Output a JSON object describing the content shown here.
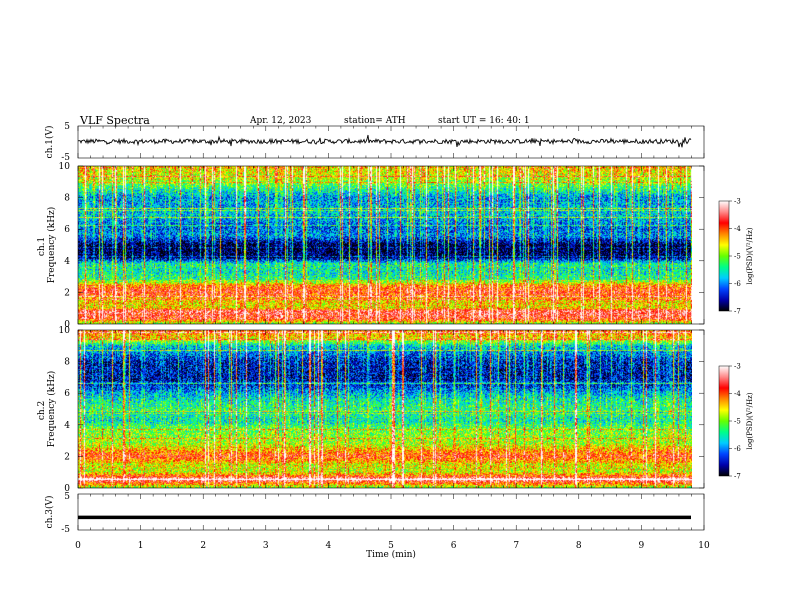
{
  "header": {
    "title": "VLF  Spectra",
    "date": "Apr. 12, 2023",
    "station": "station= ATH",
    "start": "start  UT  =   16: 40: 1"
  },
  "chart_data": [
    {
      "type": "line",
      "name": "ch1-voltage",
      "ylabel": "ch.1(V)",
      "ylim": [
        -5,
        5
      ],
      "ytick_labels": [
        "5",
        "-5"
      ],
      "xlim": [
        0,
        10
      ],
      "baseline": 0.2,
      "amplitude": 1.0,
      "series": []
    },
    {
      "type": "heatmap",
      "name": "ch1-spectrogram",
      "ylabel": "ch.1\nFrequency (kHz)",
      "ylabel_lines": [
        "ch.1",
        "Frequency (kHz)"
      ],
      "ylim": [
        0,
        10
      ],
      "ytick_labels": [
        "0",
        "2",
        "4",
        "6",
        "8",
        "10"
      ],
      "xlim": [
        0,
        9.8
      ],
      "level_profile": [
        [
          0.0,
          -5.0
        ],
        [
          0.3,
          -3.8
        ],
        [
          0.8,
          -3.6
        ],
        [
          1.0,
          -4.6
        ],
        [
          1.5,
          -4.5
        ],
        [
          2.0,
          -3.8
        ],
        [
          2.4,
          -4.2
        ],
        [
          2.8,
          -5.4
        ],
        [
          3.3,
          -5.6
        ],
        [
          3.8,
          -5.5
        ],
        [
          4.2,
          -6.8
        ],
        [
          5.0,
          -6.9
        ],
        [
          5.6,
          -6.0
        ],
        [
          6.0,
          -6.2
        ],
        [
          7.0,
          -5.8
        ],
        [
          8.0,
          -6.0
        ],
        [
          8.8,
          -5.2
        ],
        [
          9.3,
          -4.8
        ],
        [
          9.7,
          -4.6
        ],
        [
          10.0,
          -4.6
        ]
      ]
    },
    {
      "type": "heatmap",
      "name": "ch2-spectrogram",
      "ylabel": "ch.2\nFrequency (kHz)",
      "ylabel_lines": [
        "ch.2",
        "Frequency (kHz)"
      ],
      "ylim": [
        0,
        10
      ],
      "ytick_labels": [
        "0",
        "2",
        "4",
        "6",
        "8",
        "10"
      ],
      "xlim": [
        0,
        9.8
      ],
      "level_profile": [
        [
          0.0,
          -5.0
        ],
        [
          0.5,
          -3.4
        ],
        [
          0.8,
          -4.2
        ],
        [
          1.0,
          -4.8
        ],
        [
          1.5,
          -4.6
        ],
        [
          2.0,
          -3.9
        ],
        [
          2.4,
          -4.4
        ],
        [
          2.8,
          -4.9
        ],
        [
          3.3,
          -5.0
        ],
        [
          3.8,
          -5.2
        ],
        [
          4.2,
          -5.6
        ],
        [
          5.0,
          -5.4
        ],
        [
          5.6,
          -5.6
        ],
        [
          6.0,
          -5.9
        ],
        [
          6.5,
          -6.4
        ],
        [
          7.0,
          -6.6
        ],
        [
          8.0,
          -6.5
        ],
        [
          9.0,
          -5.8
        ],
        [
          9.5,
          -4.6
        ],
        [
          10.0,
          -4.2
        ]
      ]
    },
    {
      "type": "line",
      "name": "ch3-voltage",
      "ylabel": "ch.3(V)",
      "ylim": [
        -5,
        5
      ],
      "ytick_labels": [
        "5",
        "-5"
      ],
      "xlim": [
        0,
        10
      ],
      "baseline": -1.5,
      "amplitude": 0.0,
      "xlabel": "Time  (min)",
      "xtick_labels": [
        "0",
        "1",
        "2",
        "3",
        "4",
        "5",
        "6",
        "7",
        "8",
        "9",
        "10"
      ],
      "series": []
    }
  ],
  "colorbar": {
    "label": "log(PSD)(V²/Hz)",
    "range": [
      -7,
      -3
    ],
    "tick_labels": [
      "-3",
      "-4",
      "-5",
      "-6",
      "-7"
    ],
    "stops": [
      "#000000",
      "#0000aa",
      "#0044ff",
      "#00ccff",
      "#00ff88",
      "#66ff00",
      "#ffff00",
      "#ff8800",
      "#ff0000",
      "#ff8888",
      "#ffffff"
    ]
  }
}
